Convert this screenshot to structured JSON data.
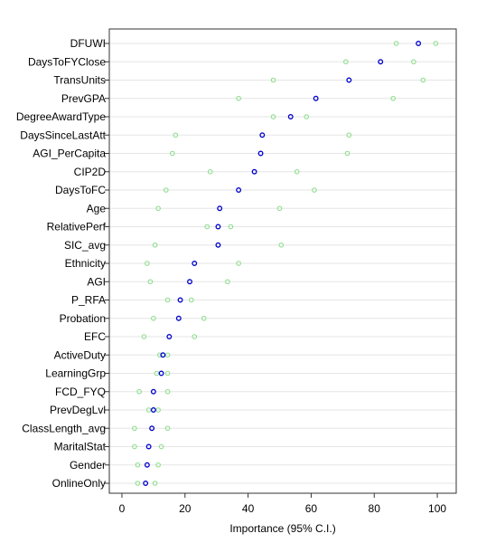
{
  "chart_data": {
    "type": "scatter",
    "xlabel": "Importance (95% C.I.)",
    "xlim": [
      -4,
      106
    ],
    "xticks": [
      0,
      20,
      40,
      60,
      80,
      100
    ],
    "grid": true,
    "colors": {
      "point": "#0000cc",
      "ci": "#88dd88",
      "grid": "#e6e6e6",
      "frame": "#333333"
    },
    "variables": [
      "DFUWI",
      "DaysToFYClose",
      "TransUnits",
      "PrevGPA",
      "DegreeAwardType",
      "DaysSinceLastAtt",
      "AGI_PerCapita",
      "CIP2D",
      "DaysToFC",
      "Age",
      "RelativePerf",
      "SIC_avg",
      "Ethnicity",
      "AGI",
      "P_RFA",
      "Probation",
      "EFC",
      "ActiveDuty",
      "LearningGrp",
      "FCD_FYQ",
      "PrevDegLvl",
      "ClassLength_avg",
      "MaritalStat",
      "Gender",
      "OnlineOnly"
    ],
    "series": [
      {
        "name": "",
        "values": [
          94,
          82,
          72,
          61.5,
          53.5,
          44.5,
          44,
          42,
          37,
          31,
          30.5,
          30.5,
          23,
          21.5,
          18.5,
          18,
          15,
          13,
          12.5,
          10,
          10,
          9.5,
          8.5,
          8,
          7.5
        ]
      },
      {
        "name": "",
        "values": [
          87,
          71,
          48,
          37,
          48,
          17,
          16,
          28,
          14,
          11.5,
          27,
          10.5,
          8,
          9,
          14.5,
          10,
          7,
          12,
          11,
          5.5,
          8.5,
          4,
          4,
          5,
          5
        ]
      },
      {
        "name": "",
        "values": [
          99.5,
          92.5,
          95.5,
          86,
          58.5,
          72,
          71.5,
          55.5,
          61,
          50,
          34.5,
          50.5,
          37,
          33.5,
          22,
          26,
          23,
          14.5,
          14.5,
          14.5,
          11.5,
          14.5,
          12.5,
          11.5,
          10.5
        ]
      }
    ]
  }
}
